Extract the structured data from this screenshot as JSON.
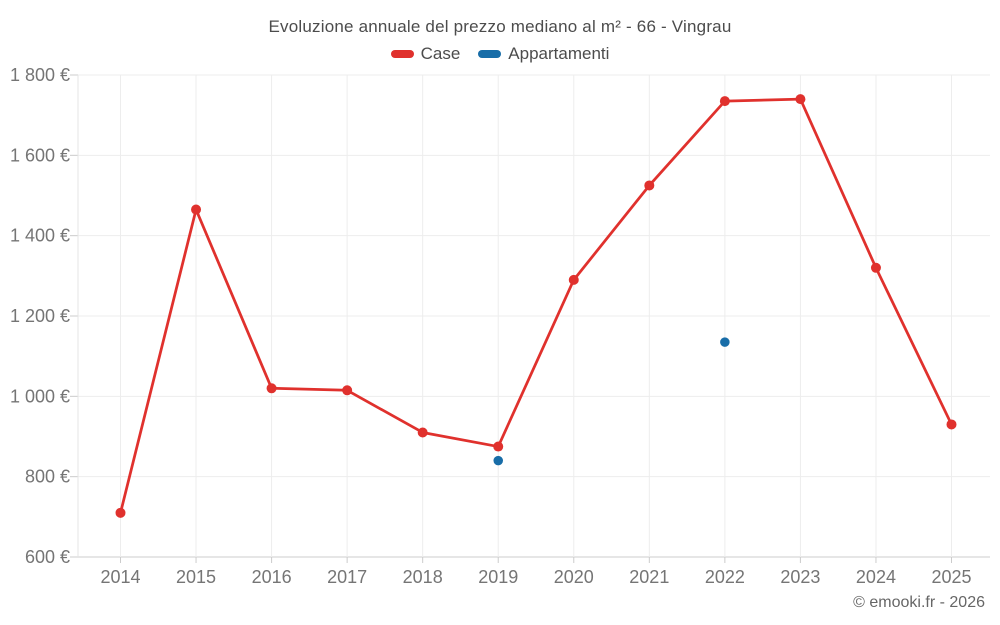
{
  "header": {
    "title": "Evoluzione annuale del prezzo mediano al m² - 66 - Vingrau"
  },
  "chart_data": {
    "type": "line",
    "title": "Evoluzione annuale del prezzo mediano al m² - 66 - Vingrau",
    "categories": [
      "2014",
      "2015",
      "2016",
      "2017",
      "2018",
      "2019",
      "2020",
      "2021",
      "2022",
      "2023",
      "2024",
      "2025"
    ],
    "series": [
      {
        "name": "Case",
        "style": "line+markers",
        "color": "#e0312d",
        "values": [
          710,
          1465,
          1020,
          1015,
          910,
          875,
          1290,
          1525,
          1735,
          1740,
          1320,
          930
        ]
      },
      {
        "name": "Appartamenti",
        "style": "markers",
        "color": "#186da8",
        "values": [
          null,
          null,
          null,
          null,
          null,
          840,
          null,
          null,
          1135,
          null,
          null,
          null
        ]
      }
    ],
    "xlabel": "",
    "ylabel": "",
    "ylim": [
      600,
      1800
    ],
    "ytick_step": 200,
    "ytick_labels": [
      "600 €",
      "800 €",
      "1 000 €",
      "1 200 €",
      "1 400 €",
      "1 600 €",
      "1 800 €"
    ],
    "grid": true,
    "legend_position": "top",
    "colors": {
      "grid_line": "#ededed",
      "axis_line": "#cccccc",
      "y_axis_line": "#e5e5e5",
      "tick_text": "#757575"
    }
  },
  "footer": {
    "copyright": "© emooki.fr - 2026"
  }
}
